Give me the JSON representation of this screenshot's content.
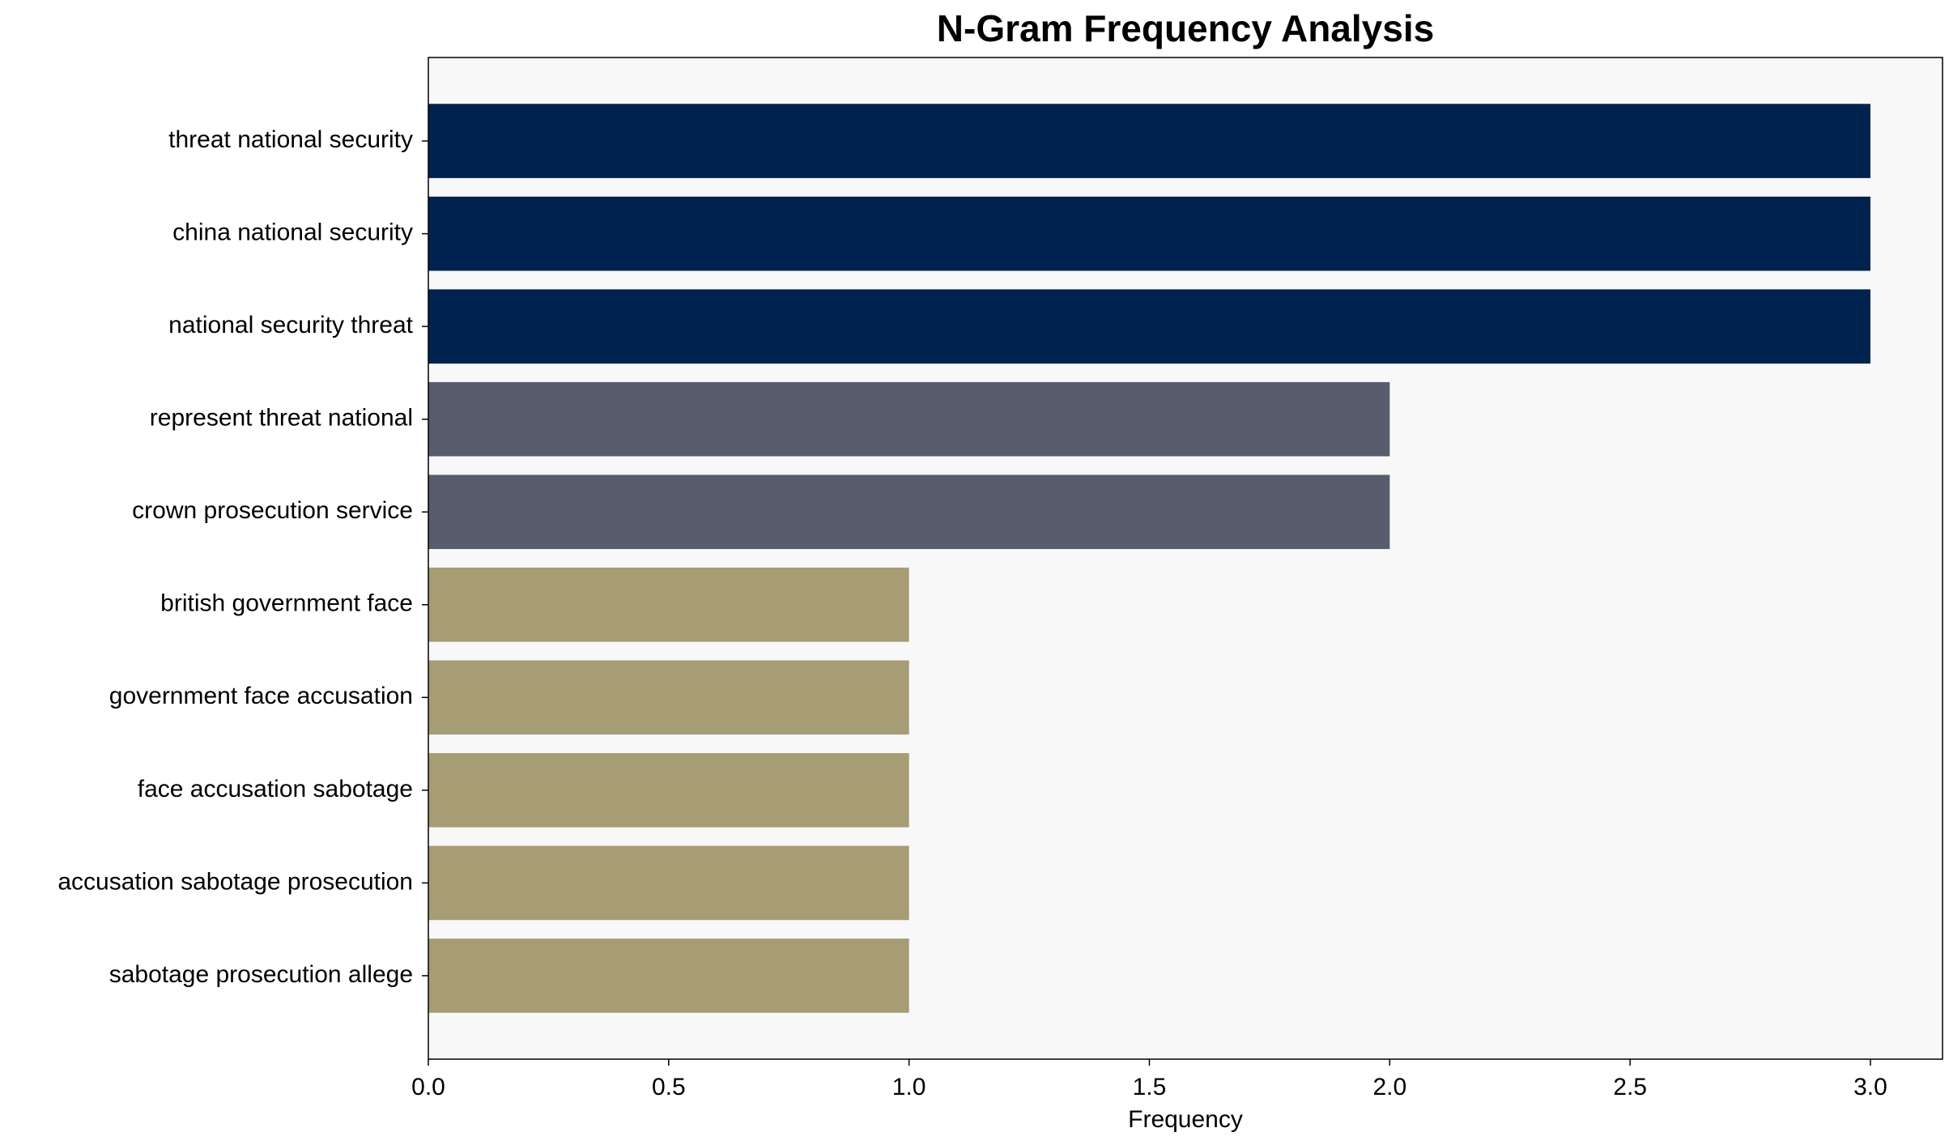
{
  "chart_data": {
    "type": "barh",
    "title": "N-Gram Frequency Analysis",
    "x_label": "Frequency",
    "categories": [
      "threat national security",
      "china national security",
      "national security threat",
      "represent threat national",
      "crown prosecution service",
      "british government face",
      "government face accusation",
      "face accusation sabotage",
      "accusation sabotage prosecution",
      "sabotage prosecution allege"
    ],
    "values": [
      3,
      3,
      3,
      2,
      2,
      1,
      1,
      1,
      1,
      1
    ],
    "colors": [
      "#00224e",
      "#00224e",
      "#00224e",
      "#575d6d",
      "#575d6d",
      "#a69d75",
      "#a69d75",
      "#a69d75",
      "#a69d75",
      "#a69d75"
    ],
    "xlim": [
      0,
      3.15
    ],
    "xticks": [
      {
        "value": 0,
        "label": "0.0"
      },
      0.5,
      {
        "value": 1,
        "label": "1.0"
      },
      1.5,
      {
        "value": 2,
        "label": "2.0"
      },
      2.5,
      {
        "value": 3,
        "label": "3.0"
      }
    ],
    "grid": false
  }
}
